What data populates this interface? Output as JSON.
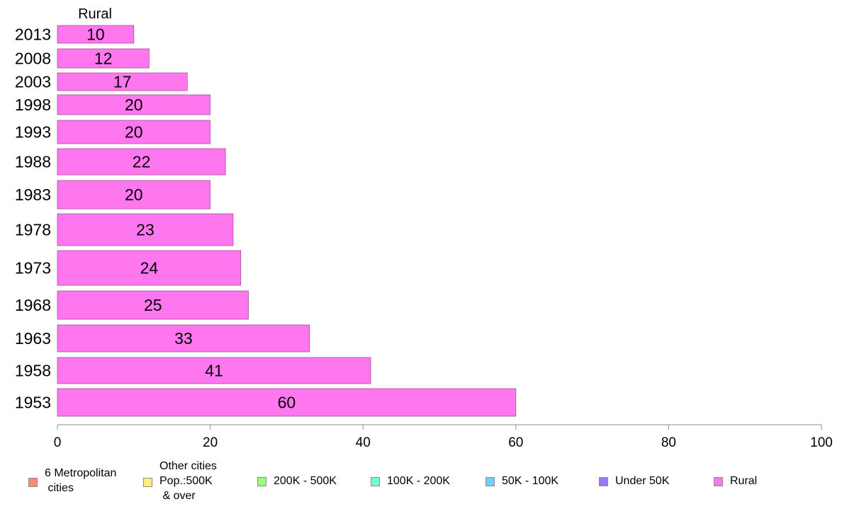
{
  "chart_data": {
    "type": "bar",
    "orientation": "horizontal",
    "panel_title": "Rural",
    "categories": [
      "2013",
      "2008",
      "2003",
      "1998",
      "1993",
      "1988",
      "1983",
      "1978",
      "1973",
      "1968",
      "1963",
      "1958",
      "1953"
    ],
    "series": [
      {
        "name": "Rural",
        "values": [
          10,
          12,
          17,
          20,
          20,
          22,
          20,
          23,
          24,
          25,
          33,
          41,
          60
        ],
        "color": "#ff77ee"
      }
    ],
    "data_labels": [
      "10",
      "12",
      "17",
      "20",
      "20",
      "22",
      "20",
      "23",
      "24",
      "25",
      "33",
      "41",
      "60"
    ],
    "xlim": [
      0,
      100
    ],
    "x_ticks": [
      0,
      20,
      40,
      60,
      80,
      100
    ],
    "grid": false,
    "legend_position": "bottom",
    "legend": [
      {
        "label": "6 Metropolitan\n cities",
        "color": "#ff8878"
      },
      {
        "label": "Other cities\nPop.:500K\n & over",
        "color": "#ffee77"
      },
      {
        "label": "200K - 500K",
        "color": "#99ff77"
      },
      {
        "label": "100K - 200K",
        "color": "#77ffcc"
      },
      {
        "label": "50K - 100K",
        "color": "#77ccff"
      },
      {
        "label": "Under 50K",
        "color": "#9977ff"
      },
      {
        "label": "Rural",
        "color": "#ff77ee"
      }
    ]
  }
}
